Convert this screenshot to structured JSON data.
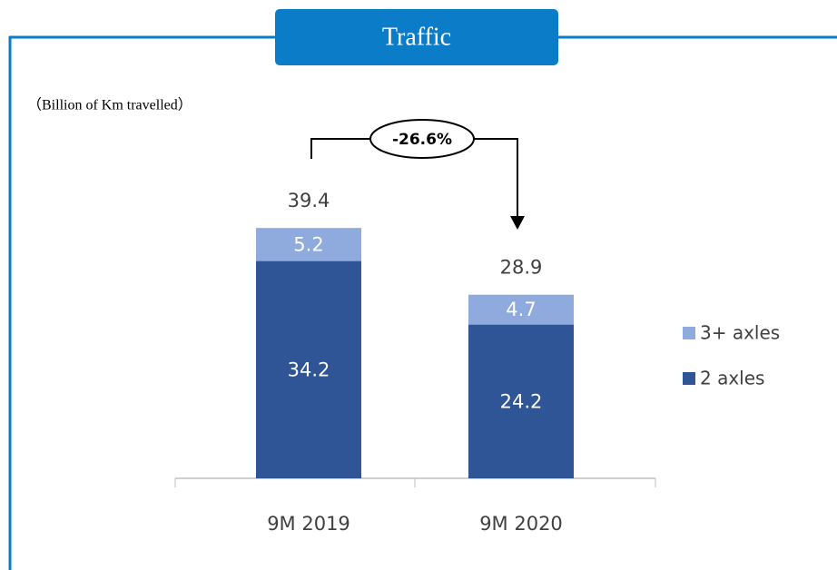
{
  "chart_data": {
    "type": "stacked_bar",
    "title": "Traffic",
    "subtitle": "（Billion of Km travelled）",
    "annotation": "-26.6%",
    "categories": [
      "9M 2019",
      "9M 2020"
    ],
    "series": [
      {
        "name": "2 axles",
        "color": "#2f5597",
        "values": [
          34.2,
          24.2
        ]
      },
      {
        "name": "3+ axles",
        "color": "#8faadc",
        "values": [
          5.2,
          4.7
        ]
      }
    ],
    "totals": [
      39.4,
      28.9
    ],
    "ylim": [
      0,
      45
    ],
    "grid": false,
    "legend": "right"
  }
}
